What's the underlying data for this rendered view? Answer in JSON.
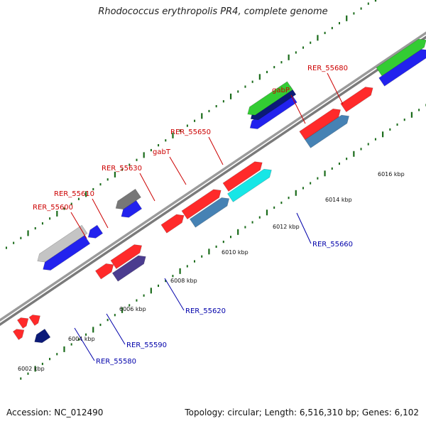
{
  "title": "Rhodococcus erythropolis PR4, complete genome",
  "footer": {
    "accession": "Accession: NC_012490",
    "summary": "Topology: circular; Length: 6,516,310 bp; Genes: 6,102"
  },
  "colors": {
    "forward_label": "#cc0000",
    "reverse_label": "#0000aa",
    "backbone": "#8a8a8a",
    "tick": "#1a6b1a"
  },
  "scale_labels": [
    "6002 kbp",
    "6004 kbp",
    "6006 kbp",
    "6008 kbp",
    "6010 kbp",
    "6012 kbp",
    "6014 kbp",
    "6016 kbp"
  ],
  "gene_labels": {
    "forward": [
      "RER_55600",
      "RER_55610",
      "RER_55630",
      "gabT",
      "RER_55650",
      "gabP",
      "RER_55680"
    ],
    "reverse": [
      "RER_55580",
      "RER_55590",
      "RER_55620",
      "RER_55660"
    ]
  }
}
